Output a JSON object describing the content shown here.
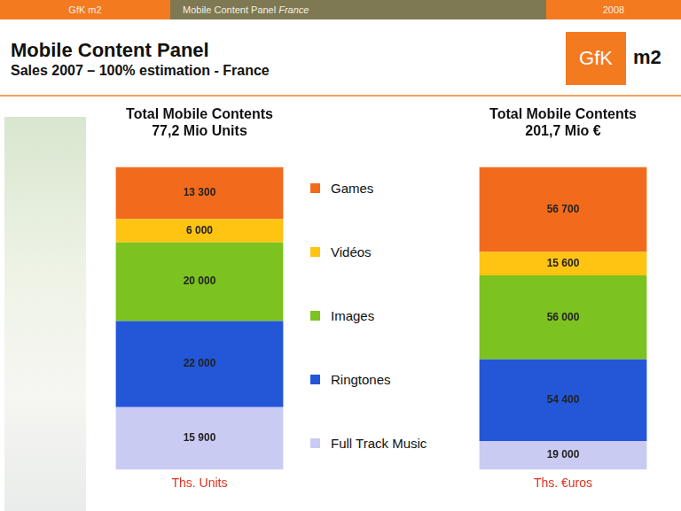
{
  "header": {
    "left": "GfK m2",
    "center": "Mobile Content Panel",
    "center_italic": "France",
    "right": "2008"
  },
  "title": "Mobile Content Panel",
  "subtitle": "Sales 2007 – 100% estimation - France",
  "logo": {
    "box": "GfK",
    "text": "m2"
  },
  "chart_data": [
    {
      "type": "bar",
      "stacked": true,
      "title": "Total Mobile Contents",
      "subtitle": "77,2 Mio Units",
      "categories": [
        "Ths. Units"
      ],
      "series": [
        {
          "name": "Games",
          "color": "#f26b1d",
          "values": [
            13300
          ],
          "value_labels": [
            "13 300"
          ]
        },
        {
          "name": "Vidéos",
          "color": "#ffc312",
          "values": [
            6000
          ],
          "value_labels": [
            "6 000"
          ]
        },
        {
          "name": "Images",
          "color": "#7cc220",
          "values": [
            20000
          ],
          "value_labels": [
            "20 000"
          ]
        },
        {
          "name": "Ringtones",
          "color": "#2357d8",
          "values": [
            22000
          ],
          "value_labels": [
            "22 000"
          ]
        },
        {
          "name": "Full Track Music",
          "color": "#cacbf2",
          "values": [
            15900
          ],
          "value_labels": [
            "15 900"
          ]
        }
      ],
      "ylim": [
        0,
        77200
      ],
      "grid": false,
      "tick_labels": "x",
      "data_labels": true,
      "legend": "right"
    },
    {
      "type": "bar",
      "stacked": true,
      "title": "Total Mobile Contents",
      "subtitle": "201,7 Mio €",
      "categories": [
        "Ths. €uros"
      ],
      "series": [
        {
          "name": "Games",
          "color": "#f26b1d",
          "values": [
            56700
          ],
          "value_labels": [
            "56 700"
          ]
        },
        {
          "name": "Vidéos",
          "color": "#ffc312",
          "values": [
            15600
          ],
          "value_labels": [
            "15 600"
          ]
        },
        {
          "name": "Images",
          "color": "#7cc220",
          "values": [
            56000
          ],
          "value_labels": [
            "56 000"
          ]
        },
        {
          "name": "Ringtones",
          "color": "#2357d8",
          "values": [
            54400
          ],
          "value_labels": [
            "54 400"
          ]
        },
        {
          "name": "Full Track Music",
          "color": "#cacbf2",
          "values": [
            19000
          ],
          "value_labels": [
            "19 000"
          ]
        }
      ],
      "ylim": [
        0,
        201700
      ],
      "grid": false,
      "tick_labels": "x",
      "data_labels": true
    }
  ]
}
